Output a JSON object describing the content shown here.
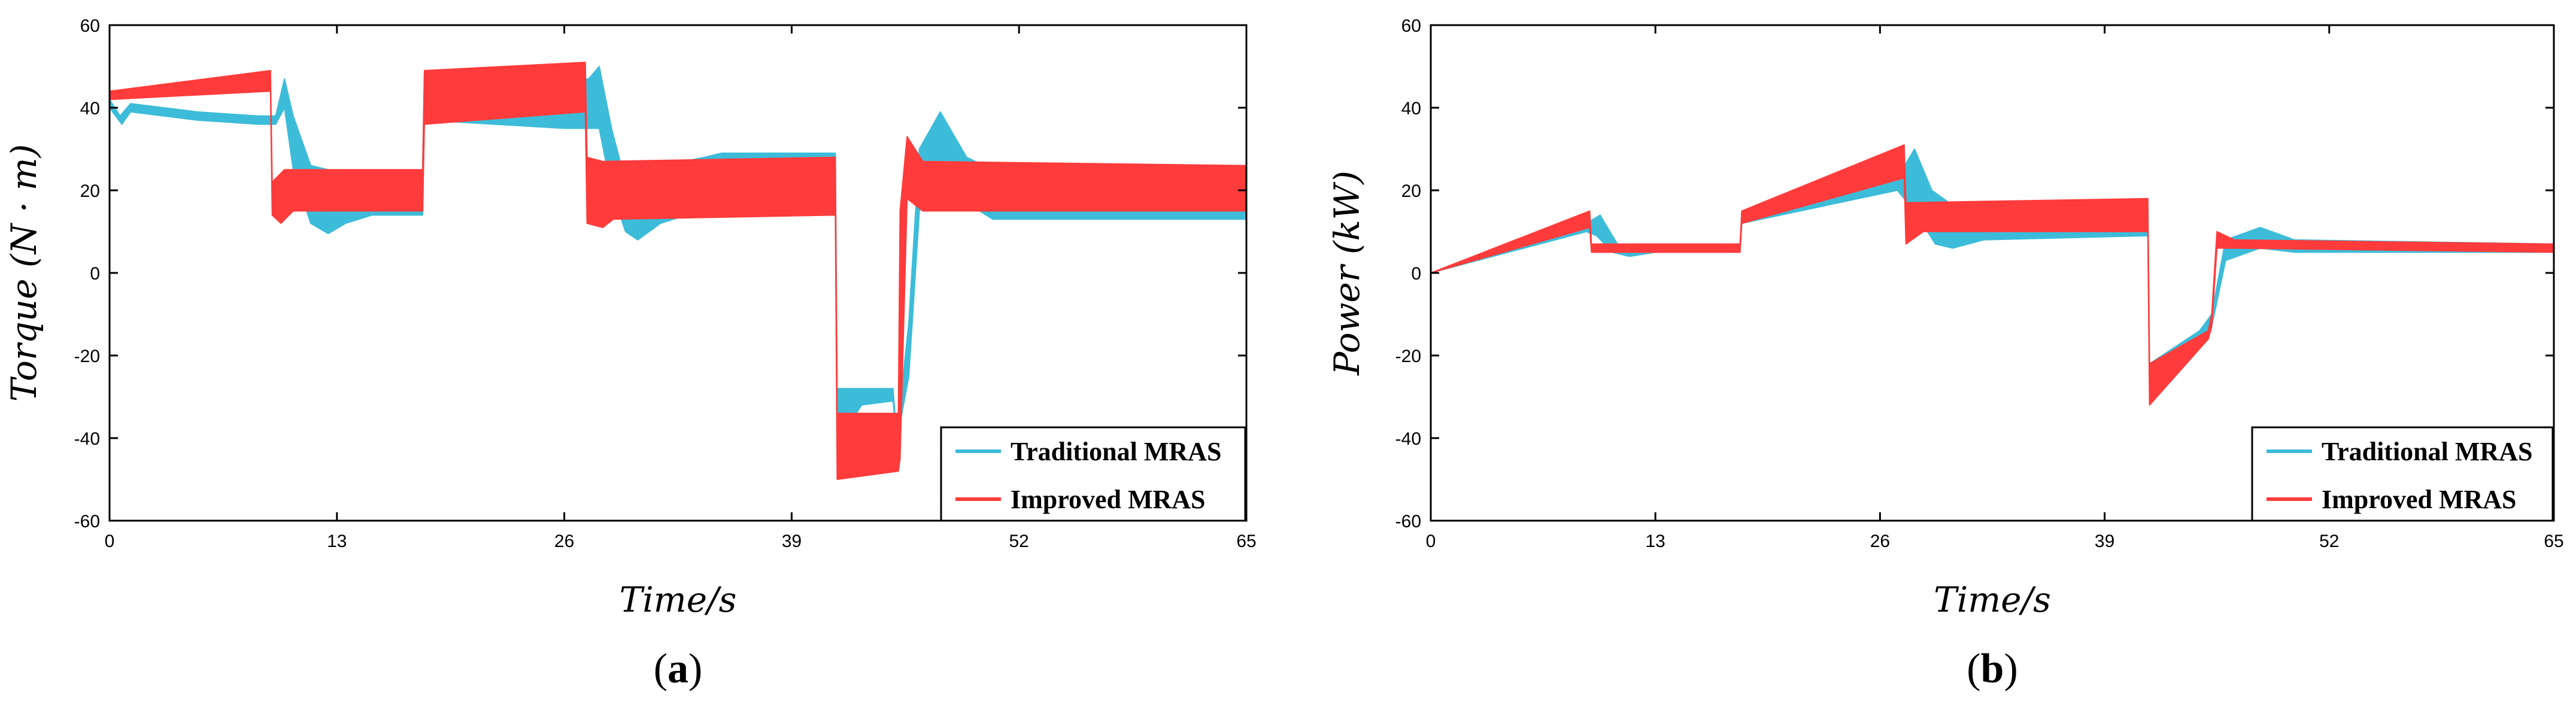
{
  "chart_data": [
    {
      "type": "line",
      "panel_label": "a",
      "xlabel": "Time/s",
      "ylabel": "Torque (N · m)",
      "xlim": [
        0,
        65
      ],
      "ylim": [
        -60,
        60
      ],
      "xticks": [
        0,
        13,
        26,
        39,
        52,
        65
      ],
      "yticks": [
        60,
        40,
        20,
        0,
        -20,
        -40,
        -60
      ],
      "grid": false,
      "legend_position": "bottom-right",
      "series": [
        {
          "name": "Traditional MRAS",
          "color": "#3dbcd9",
          "upper": [
            [
              0,
              42
            ],
            [
              0.6,
              38
            ],
            [
              1.2,
              41
            ],
            [
              5,
              39
            ],
            [
              8.5,
              38
            ],
            [
              9.5,
              38
            ],
            [
              10,
              47
            ],
            [
              10.5,
              38
            ],
            [
              11.5,
              26
            ],
            [
              12.5,
              25
            ],
            [
              17.9,
              25
            ],
            [
              18,
              48
            ],
            [
              26,
              47
            ],
            [
              27.4,
              47
            ],
            [
              28,
              50
            ],
            [
              28.7,
              35
            ],
            [
              29.5,
              22
            ],
            [
              30.5,
              25
            ],
            [
              34,
              28
            ],
            [
              35,
              29
            ],
            [
              41.5,
              29
            ],
            [
              41.6,
              -28
            ],
            [
              43,
              -28
            ],
            [
              44.8,
              -28
            ],
            [
              45,
              -40
            ],
            [
              45.7,
              -12
            ],
            [
              46.3,
              30
            ],
            [
              47.5,
              39
            ],
            [
              49,
              28
            ],
            [
              50.5,
              25
            ],
            [
              65,
              25
            ]
          ],
          "lower": [
            [
              0,
              40
            ],
            [
              0.7,
              36
            ],
            [
              1.2,
              39
            ],
            [
              5,
              37
            ],
            [
              8.5,
              36
            ],
            [
              9.5,
              36
            ],
            [
              10,
              40
            ],
            [
              10.5,
              25
            ],
            [
              11.5,
              12
            ],
            [
              12.5,
              9.5
            ],
            [
              13.5,
              12
            ],
            [
              15,
              14
            ],
            [
              17.9,
              14
            ],
            [
              18,
              37
            ],
            [
              26,
              35
            ],
            [
              27.4,
              35
            ],
            [
              28,
              35
            ],
            [
              28.7,
              20
            ],
            [
              29.5,
              10
            ],
            [
              30.2,
              8
            ],
            [
              31.5,
              12
            ],
            [
              33,
              14
            ],
            [
              41.5,
              14
            ],
            [
              41.6,
              -41
            ],
            [
              43,
              -32
            ],
            [
              44.8,
              -31
            ],
            [
              45,
              -41
            ],
            [
              45.7,
              -25
            ],
            [
              46.3,
              15
            ],
            [
              47.5,
              26
            ],
            [
              49,
              17
            ],
            [
              50.5,
              13
            ],
            [
              65,
              13
            ]
          ]
        },
        {
          "name": "Improved MRAS",
          "color": "#ff3b3b",
          "upper": [
            [
              0,
              44
            ],
            [
              9.2,
              49
            ],
            [
              9.3,
              22
            ],
            [
              10,
              25
            ],
            [
              17.9,
              25
            ],
            [
              18,
              49
            ],
            [
              27.2,
              51
            ],
            [
              27.3,
              28
            ],
            [
              28.2,
              27
            ],
            [
              41.5,
              28
            ],
            [
              41.6,
              -34
            ],
            [
              45.1,
              -34
            ],
            [
              45.2,
              15
            ],
            [
              45.6,
              33
            ],
            [
              46.5,
              27
            ],
            [
              65,
              26
            ]
          ],
          "lower": [
            [
              0,
              42
            ],
            [
              9.2,
              44
            ],
            [
              9.3,
              14
            ],
            [
              9.8,
              12
            ],
            [
              10.5,
              15
            ],
            [
              17.9,
              15
            ],
            [
              18,
              36
            ],
            [
              27.2,
              39
            ],
            [
              27.3,
              12
            ],
            [
              28.2,
              11
            ],
            [
              28.8,
              13
            ],
            [
              41.5,
              14
            ],
            [
              41.6,
              -50
            ],
            [
              45.1,
              -48
            ],
            [
              45.2,
              -45
            ],
            [
              45.6,
              18
            ],
            [
              46.5,
              15
            ],
            [
              65,
              15
            ]
          ]
        }
      ]
    },
    {
      "type": "line",
      "panel_label": "b",
      "xlabel": "Time/s",
      "ylabel": "Power (kW)",
      "xlim": [
        0,
        65
      ],
      "ylim": [
        -60,
        60
      ],
      "xticks": [
        0,
        13,
        26,
        39,
        52,
        65
      ],
      "yticks": [
        60,
        40,
        20,
        0,
        -20,
        -40,
        -60
      ],
      "grid": false,
      "legend_position": "bottom-right",
      "series": [
        {
          "name": "Traditional MRAS",
          "color": "#3dbcd9",
          "upper": [
            [
              0,
              0
            ],
            [
              9,
              12
            ],
            [
              9.8,
              14
            ],
            [
              10.8,
              7
            ],
            [
              13,
              7
            ],
            [
              17.9,
              7
            ],
            [
              18,
              15
            ],
            [
              27,
              23
            ],
            [
              28,
              30
            ],
            [
              29,
              20
            ],
            [
              30,
              17
            ],
            [
              41.5,
              18
            ],
            [
              41.6,
              -22
            ],
            [
              44.5,
              -14
            ],
            [
              45.2,
              -10
            ],
            [
              46,
              8
            ],
            [
              48,
              11
            ],
            [
              50,
              8
            ],
            [
              65,
              7
            ]
          ],
          "lower": [
            [
              0,
              0
            ],
            [
              9,
              10
            ],
            [
              9.6,
              9
            ],
            [
              10.5,
              5
            ],
            [
              11.5,
              4
            ],
            [
              13,
              5
            ],
            [
              17.9,
              5
            ],
            [
              18,
              12
            ],
            [
              27,
              20
            ],
            [
              28,
              15
            ],
            [
              29.2,
              7
            ],
            [
              30.2,
              6
            ],
            [
              32,
              8
            ],
            [
              41.5,
              9
            ],
            [
              41.6,
              -26
            ],
            [
              44.5,
              -18
            ],
            [
              45.2,
              -13
            ],
            [
              46,
              3
            ],
            [
              48,
              6
            ],
            [
              50,
              5
            ],
            [
              65,
              5
            ]
          ]
        },
        {
          "name": "Improved MRAS",
          "color": "#ff3b3b",
          "upper": [
            [
              0,
              0
            ],
            [
              9.2,
              15
            ],
            [
              9.3,
              7
            ],
            [
              17.9,
              7
            ],
            [
              18,
              15
            ],
            [
              27.4,
              31
            ],
            [
              27.5,
              17
            ],
            [
              41.5,
              18
            ],
            [
              41.6,
              -22
            ],
            [
              45,
              -14
            ],
            [
              45.2,
              -10
            ],
            [
              45.5,
              10
            ],
            [
              46.5,
              8
            ],
            [
              65,
              7
            ]
          ],
          "lower": [
            [
              0,
              0
            ],
            [
              9.2,
              11
            ],
            [
              9.3,
              5
            ],
            [
              17.9,
              5
            ],
            [
              18,
              12
            ],
            [
              27.4,
              23
            ],
            [
              27.5,
              7
            ],
            [
              28.5,
              10
            ],
            [
              41.5,
              10
            ],
            [
              41.6,
              -32
            ],
            [
              45,
              -16
            ],
            [
              45.2,
              -13
            ],
            [
              45.5,
              6
            ],
            [
              46.5,
              6
            ],
            [
              65,
              5
            ]
          ]
        }
      ]
    }
  ]
}
